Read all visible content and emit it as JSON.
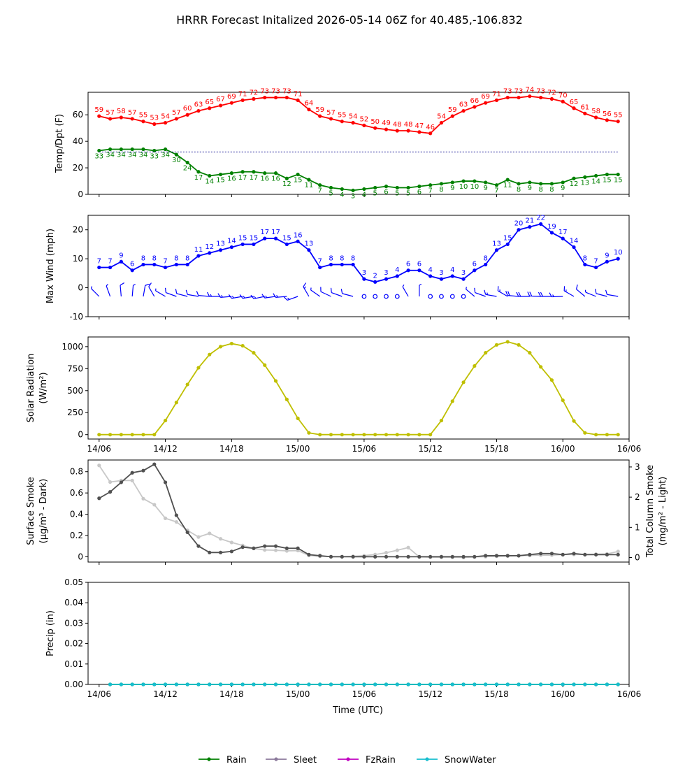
{
  "title": "HRRR Forecast Initalized 2026-05-14 06Z for 40.485,-106.832",
  "xlabel": "Time (UTC)",
  "x_ticks": [
    "14/06",
    "14/12",
    "14/18",
    "15/00",
    "15/06",
    "15/12",
    "15/18",
    "16/00",
    "16/06"
  ],
  "legend": [
    {
      "name": "Rain",
      "color": "#008000"
    },
    {
      "name": "Sleet",
      "color": "#8c7a9c"
    },
    {
      "name": "FzRain",
      "color": "#c000c0"
    },
    {
      "name": "SnowWater",
      "color": "#17becf"
    }
  ],
  "chart_data": [
    {
      "type": "line",
      "ylabel": "Temp/Dpt (F)",
      "ylim": [
        0,
        77
      ],
      "yticks": [
        0,
        20,
        40,
        60
      ],
      "x_range_hours": [
        -1,
        48
      ],
      "series": [
        {
          "color": "#ff0000",
          "labels": true,
          "x": [
            0,
            1,
            2,
            3,
            4,
            5,
            6,
            7,
            8,
            9,
            10,
            11,
            12,
            13,
            14,
            15,
            16,
            17,
            18,
            19,
            20,
            21,
            22,
            23,
            24,
            25,
            26,
            27,
            28,
            29,
            30,
            31,
            32,
            33,
            34,
            35,
            36,
            37,
            38,
            39,
            40,
            41,
            42,
            43,
            44,
            45,
            46,
            47
          ],
          "values": [
            59,
            57,
            58,
            57,
            55,
            53,
            54,
            57,
            60,
            63,
            65,
            67,
            69,
            71,
            72,
            73,
            73,
            73,
            71,
            64,
            59,
            57,
            55,
            54,
            52,
            50,
            49,
            48,
            48,
            47,
            46,
            54,
            59,
            63,
            66,
            69,
            71,
            73,
            73,
            74,
            73,
            72,
            70,
            65,
            61,
            58,
            56,
            55
          ]
        },
        {
          "color": "#008000",
          "labels": true,
          "x": [
            0,
            1,
            2,
            3,
            4,
            5,
            6,
            7,
            8,
            9,
            10,
            11,
            12,
            13,
            14,
            15,
            16,
            17,
            18,
            19,
            20,
            21,
            22,
            23,
            24,
            25,
            26,
            27,
            28,
            29,
            30,
            31,
            32,
            33,
            34,
            35,
            36,
            37,
            38,
            39,
            40,
            41,
            42,
            43,
            44,
            45,
            46,
            47
          ],
          "values": [
            33,
            34,
            34,
            34,
            34,
            33,
            34,
            30,
            24,
            17,
            14,
            15,
            16,
            17,
            17,
            16,
            16,
            12,
            15,
            11,
            7,
            5,
            4,
            3,
            4,
            5,
            6,
            5,
            5,
            6,
            7,
            8,
            9,
            10,
            10,
            9,
            7,
            11,
            8,
            9,
            8,
            8,
            9,
            12,
            13,
            14,
            15,
            15
          ]
        },
        {
          "color": "#00008b",
          "dashed": true,
          "x": [
            0,
            47
          ],
          "values": [
            32,
            32
          ]
        }
      ]
    },
    {
      "type": "line",
      "ylabel": "Max Wind (mph)",
      "ylim": [
        -10,
        25
      ],
      "yticks": [
        -10,
        0,
        10,
        20
      ],
      "x_range_hours": [
        -1,
        48
      ],
      "series": [
        {
          "color": "#0000ff",
          "labels": true,
          "x": [
            0,
            1,
            2,
            3,
            4,
            5,
            6,
            7,
            8,
            9,
            10,
            11,
            12,
            13,
            14,
            15,
            16,
            17,
            18,
            19,
            20,
            21,
            22,
            23,
            24,
            25,
            26,
            27,
            28,
            29,
            30,
            31,
            32,
            33,
            34,
            35,
            36,
            37,
            38,
            39,
            40,
            41,
            42,
            43,
            44,
            45,
            46,
            47
          ],
          "values": [
            7,
            7,
            9,
            6,
            8,
            8,
            7,
            8,
            8,
            11,
            12,
            13,
            14,
            15,
            15,
            17,
            17,
            15,
            16,
            13,
            7,
            8,
            8,
            8,
            3,
            2,
            3,
            4,
            6,
            6,
            4,
            3,
            4,
            3,
            6,
            8,
            13,
            15,
            20,
            21,
            22,
            19,
            17,
            14,
            8,
            7,
            9,
            10
          ]
        }
      ],
      "barbs_y": -3,
      "barb_directions_deg": [
        315,
        340,
        355,
        5,
        10,
        330,
        300,
        290,
        285,
        280,
        275,
        270,
        265,
        260,
        260,
        258,
        262,
        265,
        250,
        330,
        305,
        295,
        290,
        285,
        0,
        0,
        350,
        320,
        330,
        0,
        0,
        330,
        340,
        0,
        310,
        290,
        280,
        300,
        275,
        270,
        272,
        270,
        268,
        300,
        310,
        292,
        285,
        280
      ]
    },
    {
      "type": "line",
      "ylabel": "Solar Radiation",
      "ylabel_units": "(W/m²)",
      "ylim": [
        -50,
        1110
      ],
      "yticks": [
        0,
        250,
        500,
        750,
        1000
      ],
      "x_range_hours": [
        -1,
        48
      ],
      "series": [
        {
          "color": "#bfbf00",
          "x": [
            0,
            1,
            2,
            3,
            4,
            5,
            6,
            7,
            8,
            9,
            10,
            11,
            12,
            13,
            14,
            15,
            16,
            17,
            18,
            19,
            20,
            21,
            22,
            23,
            24,
            25,
            26,
            27,
            28,
            29,
            30,
            31,
            32,
            33,
            34,
            35,
            36,
            37,
            38,
            39,
            40,
            41,
            42,
            43,
            44,
            45,
            46,
            47
          ],
          "values": [
            0,
            0,
            0,
            0,
            0,
            0,
            160,
            365,
            570,
            760,
            910,
            1000,
            1035,
            1010,
            930,
            790,
            610,
            400,
            185,
            20,
            0,
            0,
            0,
            0,
            0,
            0,
            0,
            0,
            0,
            0,
            0,
            160,
            380,
            595,
            780,
            930,
            1020,
            1055,
            1020,
            930,
            770,
            620,
            390,
            155,
            20,
            0,
            0,
            0
          ]
        }
      ]
    },
    {
      "type": "line",
      "ylabel": "Surface Smoke",
      "ylabel_units": "(μg/m³ - Dark)",
      "ylabel_right": "Total Column Smoke",
      "ylabel_right_units": "(mg/m² - Light)",
      "ylim": [
        -0.05,
        0.91
      ],
      "yticks": [
        0.0,
        0.2,
        0.4,
        0.6,
        0.8
      ],
      "ylim_right": [
        -0.15,
        3.23
      ],
      "yticks_right": [
        0,
        1,
        2,
        3
      ],
      "x_range_hours": [
        -1,
        48
      ],
      "series": [
        {
          "color": "#c8c8c8",
          "axis": "right",
          "x": [
            0,
            1,
            2,
            3,
            4,
            5,
            6,
            7,
            8,
            9,
            10,
            11,
            12,
            13,
            14,
            15,
            16,
            17,
            18,
            19,
            20,
            21,
            22,
            23,
            24,
            25,
            26,
            27,
            28,
            29,
            30,
            31,
            32,
            33,
            34,
            35,
            36,
            37,
            38,
            39,
            40,
            41,
            42,
            43,
            44,
            45,
            46,
            47
          ],
          "values": [
            3.05,
            2.5,
            2.55,
            2.55,
            1.95,
            1.75,
            1.3,
            1.18,
            0.9,
            0.68,
            0.8,
            0.62,
            0.5,
            0.4,
            0.3,
            0.25,
            0.24,
            0.22,
            0.23,
            0.07,
            0.04,
            0.03,
            0.03,
            0.04,
            0.06,
            0.1,
            0.16,
            0.24,
            0.33,
            0.02,
            0.01,
            0.01,
            0.01,
            0.0,
            0.02,
            0.03,
            0.04,
            0.05,
            0.06,
            0.07,
            0.08,
            0.08,
            0.1,
            0.1,
            0.1,
            0.11,
            0.12,
            0.2
          ]
        },
        {
          "color": "#505050",
          "axis": "left",
          "x": [
            0,
            1,
            2,
            3,
            4,
            5,
            6,
            7,
            8,
            9,
            10,
            11,
            12,
            13,
            14,
            15,
            16,
            17,
            18,
            19,
            20,
            21,
            22,
            23,
            24,
            25,
            26,
            27,
            28,
            29,
            30,
            31,
            32,
            33,
            34,
            35,
            36,
            37,
            38,
            39,
            40,
            41,
            42,
            43,
            44,
            45,
            46,
            47
          ],
          "values": [
            0.55,
            0.61,
            0.7,
            0.79,
            0.81,
            0.87,
            0.7,
            0.39,
            0.23,
            0.1,
            0.04,
            0.04,
            0.05,
            0.09,
            0.08,
            0.1,
            0.1,
            0.08,
            0.08,
            0.02,
            0.01,
            0.0,
            0.0,
            0.0,
            0.0,
            0.0,
            0.0,
            0.0,
            0.0,
            0.0,
            0.0,
            0.0,
            0.0,
            0.0,
            0.0,
            0.01,
            0.01,
            0.01,
            0.01,
            0.02,
            0.03,
            0.03,
            0.02,
            0.03,
            0.02,
            0.02,
            0.02,
            0.02
          ]
        }
      ]
    },
    {
      "type": "line",
      "ylabel": "Precip (in)",
      "ylim": [
        0,
        0.05
      ],
      "yticks": [
        0.0,
        0.01,
        0.02,
        0.03,
        0.04,
        0.05
      ],
      "ytick_labels": [
        "0.00",
        "0.01",
        "0.02",
        "0.03",
        "0.04",
        "0.05"
      ],
      "x_range_hours": [
        -1,
        48
      ],
      "series": [
        {
          "name": "Rain",
          "color": "#008000",
          "x": [
            1,
            2,
            3,
            4,
            5,
            6,
            7,
            8,
            9,
            10,
            11,
            12,
            13,
            14,
            15,
            16,
            17,
            18,
            19,
            20,
            21,
            22,
            23,
            24,
            25,
            26,
            27,
            28,
            29,
            30,
            31,
            32,
            33,
            34,
            35,
            36,
            37,
            38,
            39,
            40,
            41,
            42,
            43,
            44,
            45,
            46,
            47
          ],
          "values": [
            0,
            0,
            0,
            0,
            0,
            0,
            0,
            0,
            0,
            0,
            0,
            0,
            0,
            0,
            0,
            0,
            0,
            0,
            0,
            0,
            0,
            0,
            0,
            0,
            0,
            0,
            0,
            0,
            0,
            0,
            0,
            0,
            0,
            0,
            0,
            0,
            0,
            0,
            0,
            0,
            0,
            0,
            0,
            0,
            0,
            0,
            0
          ]
        },
        {
          "name": "SnowWater",
          "color": "#17becf",
          "x": [
            1,
            2,
            3,
            4,
            5,
            6,
            7,
            8,
            9,
            10,
            11,
            12,
            13,
            14,
            15,
            16,
            17,
            18,
            19,
            20,
            21,
            22,
            23,
            24,
            25,
            26,
            27,
            28,
            29,
            30,
            31,
            32,
            33,
            34,
            35,
            36,
            37,
            38,
            39,
            40,
            41,
            42,
            43,
            44,
            45,
            46,
            47
          ],
          "values": [
            0,
            0,
            0,
            0,
            0,
            0,
            0,
            0,
            0,
            0,
            0,
            0,
            0,
            0,
            0,
            0,
            0,
            0,
            0,
            0,
            0,
            0,
            0,
            0,
            0,
            0,
            0,
            0,
            0,
            0,
            0,
            0,
            0,
            0,
            0,
            0,
            0,
            0,
            0,
            0,
            0,
            0,
            0,
            0,
            0,
            0,
            0
          ]
        }
      ]
    }
  ]
}
